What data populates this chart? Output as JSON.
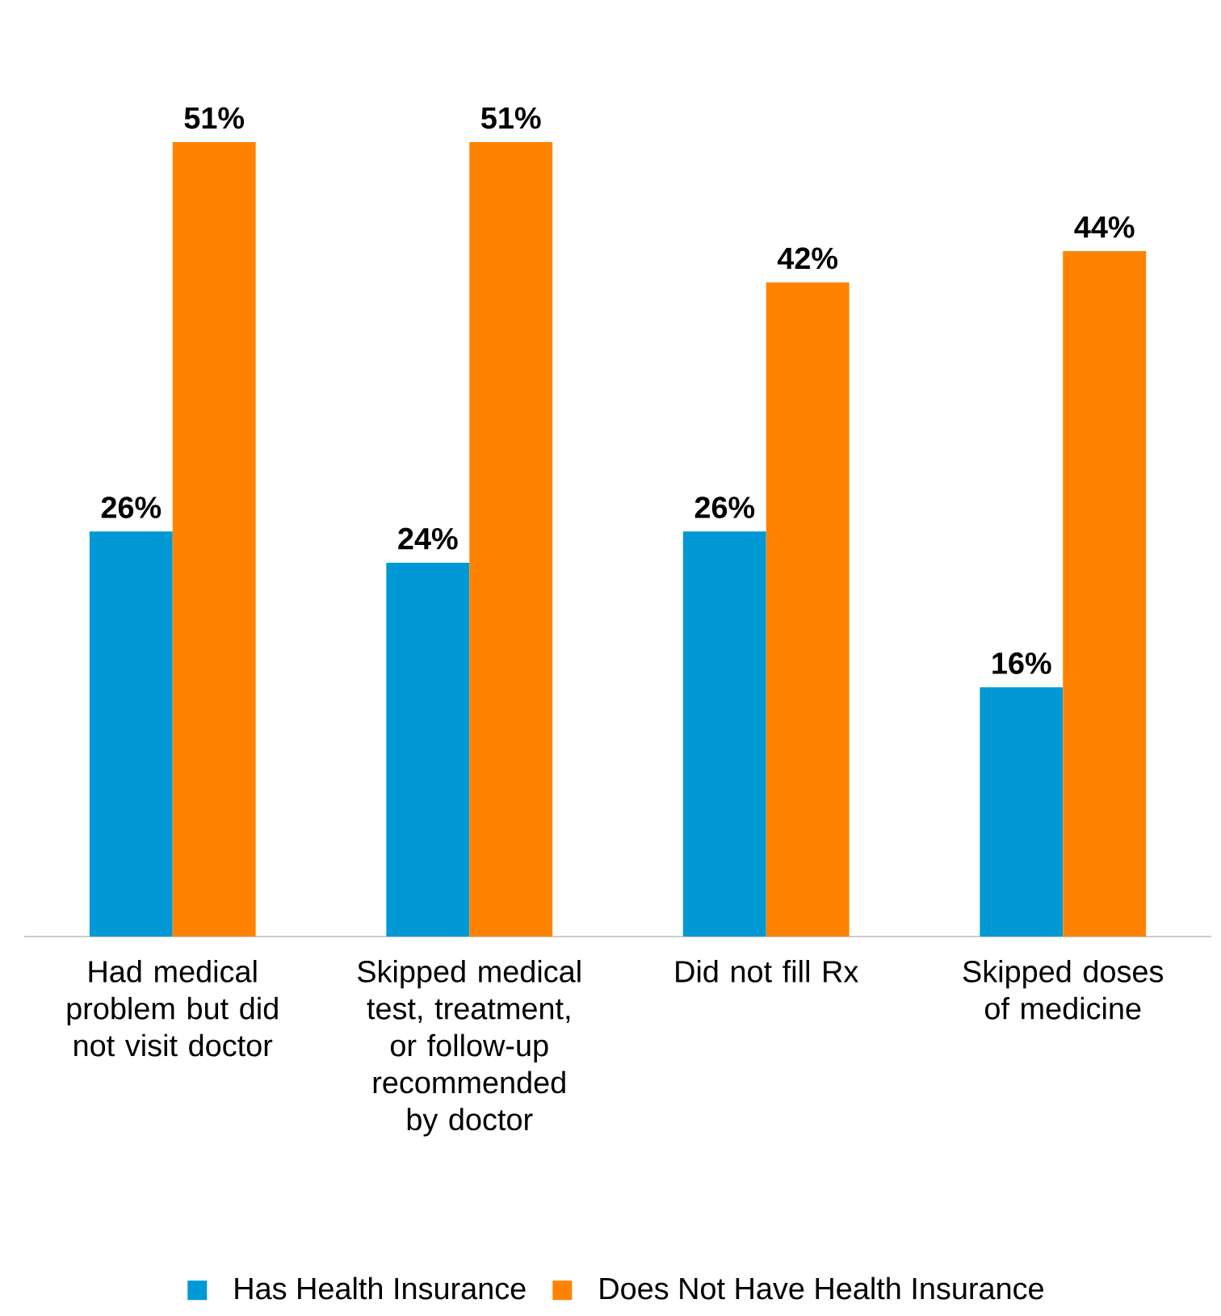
{
  "chart_data": {
    "type": "bar",
    "categories": [
      "Had medical problem but did not visit doctor",
      "Skipped medical test, treatment, or follow-up recommended by doctor",
      "Did not fill Rx",
      "Skipped doses of medicine"
    ],
    "series": [
      {
        "name": "Has Health Insurance",
        "color": "#0099d6",
        "values": [
          26,
          24,
          26,
          16
        ],
        "value_labels": [
          "26%",
          "24%",
          "26%",
          "16%"
        ]
      },
      {
        "name": "Does Not Have Health Insurance",
        "color": "#ff8300",
        "values": [
          51,
          51,
          42,
          44
        ],
        "value_labels": [
          "51%",
          "51%",
          "42%",
          "44%"
        ]
      }
    ],
    "legend": "bottom"
  }
}
